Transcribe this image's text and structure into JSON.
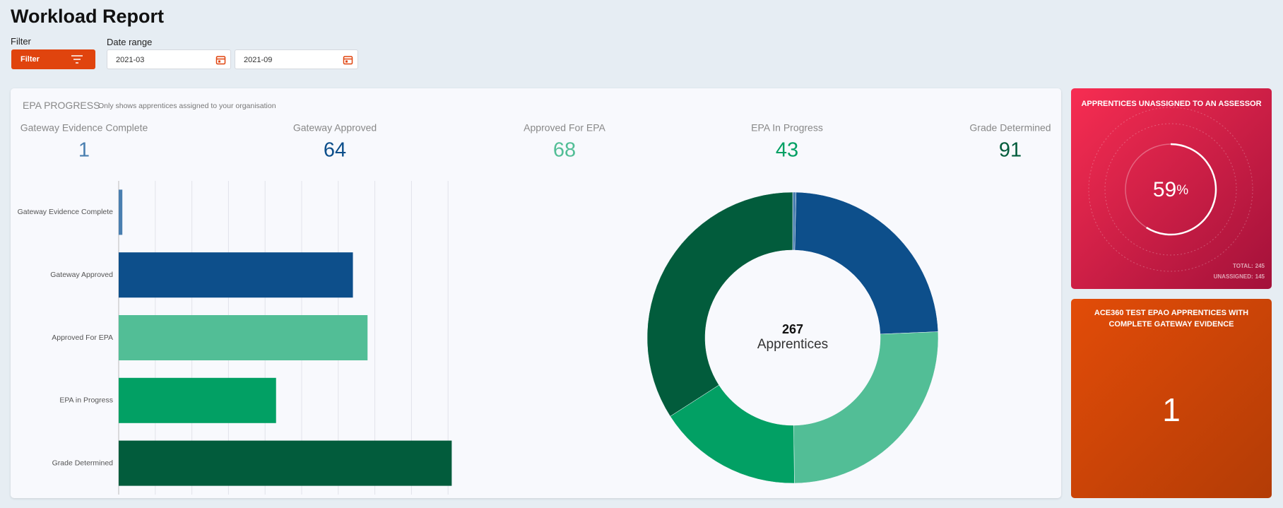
{
  "header": {
    "title": "Workload Report"
  },
  "filters": {
    "filter_label": "Filter",
    "filter_button": "Filter",
    "date_range_label": "Date range",
    "date_from": "2021-03",
    "date_to": "2021-09"
  },
  "epa_progress": {
    "title": "EPA PROGRESS",
    "subtitle": "Only shows apprentices assigned to your organisation",
    "stats": [
      {
        "label": "Gateway Evidence Complete",
        "value": 1
      },
      {
        "label": "Gateway Approved",
        "value": 64
      },
      {
        "label": "Approved For EPA",
        "value": 68
      },
      {
        "label": "EPA In Progress",
        "value": 43
      },
      {
        "label": "Grade Determined",
        "value": 91
      }
    ]
  },
  "chart_data": [
    {
      "type": "bar",
      "orientation": "horizontal",
      "categories": [
        "Gateway Evidence Complete",
        "Gateway Approved",
        "Approved For EPA",
        "EPA in Progress",
        "Grade Determined"
      ],
      "values": [
        1,
        64,
        68,
        43,
        91
      ],
      "colors": [
        "#4a7fb0",
        "#0d4f8b",
        "#52be96",
        "#02a064",
        "#025c3c"
      ],
      "xlim": [
        0,
        100
      ],
      "xticks": [
        0,
        10,
        20,
        30,
        40,
        50,
        60,
        70,
        80,
        90
      ],
      "grid": true
    },
    {
      "type": "donut",
      "values": [
        1,
        64,
        68,
        43,
        91
      ],
      "colors": [
        "#4a7fb0",
        "#0d4f8b",
        "#52be96",
        "#02a064",
        "#025c3c"
      ],
      "center_value": 267,
      "center_label": "Apprentices"
    }
  ],
  "unassigned_card": {
    "title": "APPRENTICES UNASSIGNED TO AN ASSESSOR",
    "percent": 59,
    "unit": "%",
    "total_label": "TOTAL:",
    "total": 245,
    "unassigned_label": "UNASSIGNED:",
    "unassigned": 145
  },
  "gateway_card": {
    "title": "ACE360 TEST EPAO APPRENTICES WITH COMPLETE GATEWAY EVIDENCE",
    "value": 1
  }
}
